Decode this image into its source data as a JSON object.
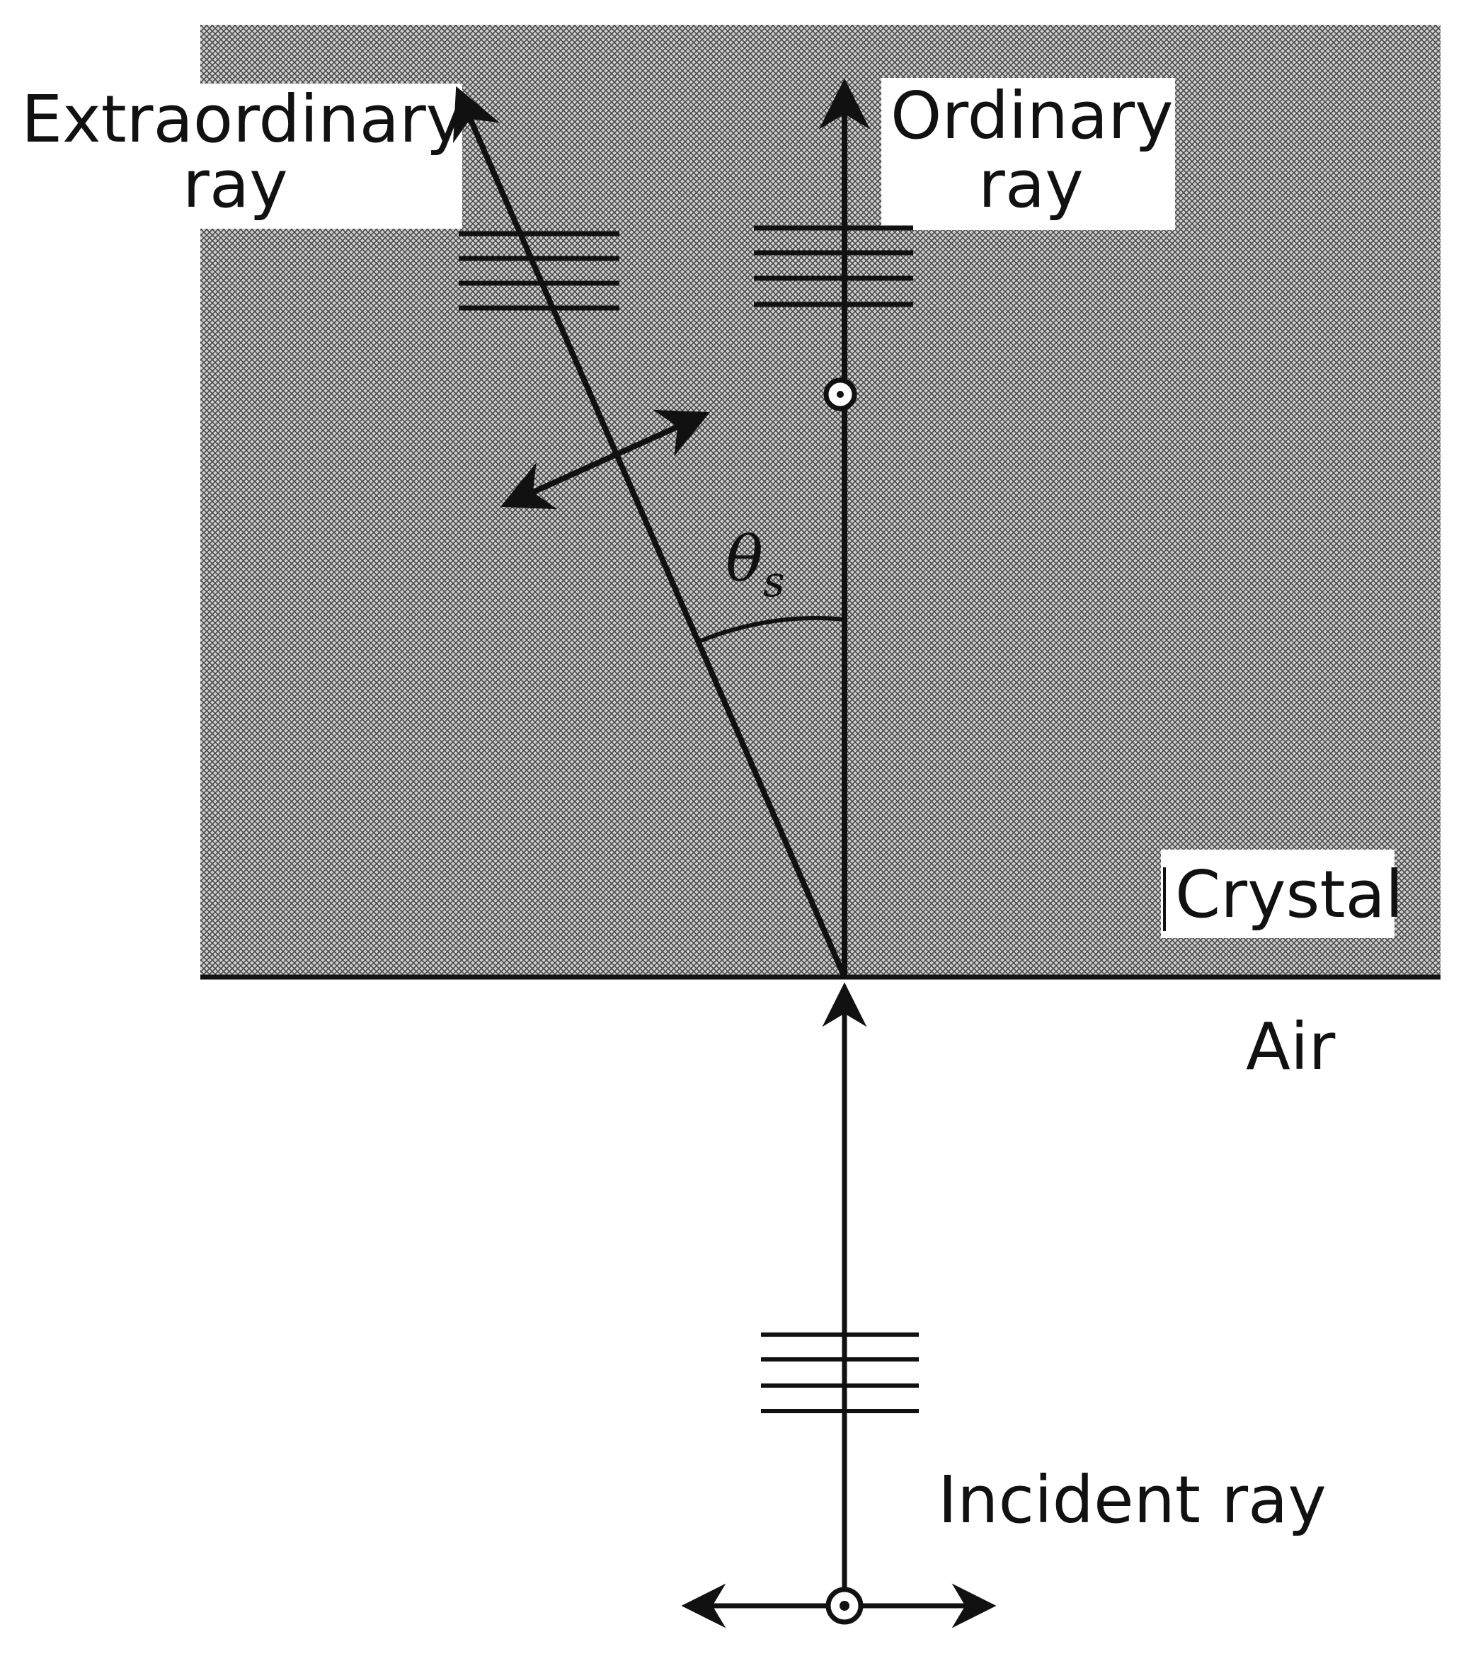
{
  "labels": {
    "extraordinary_line1": "Extraordinary",
    "extraordinary_line2": "ray",
    "ordinary_line1": "Ordinary",
    "ordinary_line2": "ray",
    "angle_symbol": "θ",
    "angle_subscript": "s",
    "crystal": "Crystal",
    "air": "Air",
    "incident": "Incident ray"
  },
  "colors": {
    "crystal_fill": "#c8c8c8",
    "crystal_pattern_dark": "#555555",
    "line": "#111111",
    "background": "#ffffff"
  }
}
